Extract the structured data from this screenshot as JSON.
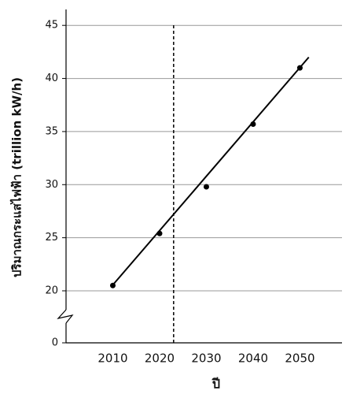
{
  "chart_data": {
    "type": "scatter",
    "x_label": "ปี",
    "y_label": "ปริมาณกระแสไฟฟ้า (trillion kW/h)",
    "x": [
      2010,
      2020,
      2030,
      2040,
      2050
    ],
    "series": [
      {
        "color": "#000000",
        "values": [
          20.5,
          25.4,
          29.8,
          35.7,
          41.0
        ]
      }
    ],
    "fit_line": {
      "x": [
        2009.7,
        2051.9
      ],
      "y": [
        20.4,
        42.0
      ],
      "color": "#000000"
    },
    "vline": 2023,
    "xlim": [
      2000,
      2059
    ],
    "xticks": [
      2010,
      2020,
      2030,
      2040,
      2050
    ],
    "ylim": [
      0,
      46.5
    ],
    "yticks": [
      0,
      20,
      25,
      30,
      35,
      40,
      45
    ],
    "axis_break": [
      0,
      20
    ],
    "grid": true
  }
}
